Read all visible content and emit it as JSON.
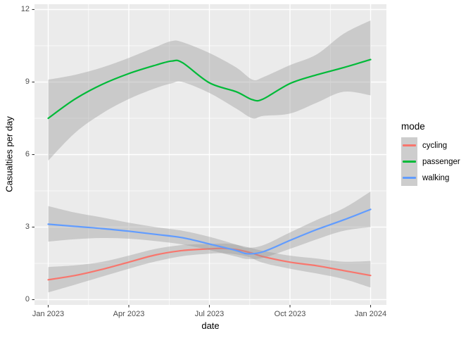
{
  "style": {
    "background": "#FFFFFF",
    "panel_bg": "#EBEBEB",
    "grid_color": "#FFFFFF",
    "band_color": "#999999",
    "band_opacity": 0.4,
    "tick_mark_color": "#333333",
    "tick_text_color": "#4D4D4D",
    "legend_key_bg": "#CDCDCD"
  },
  "chart_data": {
    "type": "line",
    "title": "",
    "xlabel": "date",
    "ylabel": "Casualties per day",
    "x_unit": "months since Jan 2023",
    "ylim": [
      0,
      12
    ],
    "grid": true,
    "x_ticks": [
      {
        "pos": 0,
        "label": "Jan 2023"
      },
      {
        "pos": 3,
        "label": "Apr 2023"
      },
      {
        "pos": 6,
        "label": "Jul 2023"
      },
      {
        "pos": 9,
        "label": "Oct 2023"
      },
      {
        "pos": 12,
        "label": "Jan 2024"
      }
    ],
    "y_ticks": [
      {
        "pos": 0,
        "label": "0"
      },
      {
        "pos": 3,
        "label": "3"
      },
      {
        "pos": 6,
        "label": "6"
      },
      {
        "pos": 9,
        "label": "9"
      },
      {
        "pos": 12,
        "label": "12"
      }
    ],
    "x_minor": [
      1.5,
      4.5,
      7.5,
      10.5
    ],
    "y_minor": [
      1.5,
      4.5,
      7.5,
      10.5
    ],
    "legend": {
      "title": "mode",
      "position": "right"
    },
    "series": [
      {
        "name": "cycling",
        "color": "#F8766D",
        "x": [
          0,
          1,
          2,
          3,
          4,
          5,
          6,
          6.5,
          7,
          7.5,
          8,
          9,
          10,
          11,
          12
        ],
        "y": [
          0.82,
          1.0,
          1.25,
          1.55,
          1.85,
          2.03,
          2.1,
          2.12,
          2.07,
          1.95,
          1.78,
          1.55,
          1.4,
          1.2,
          1.0
        ],
        "lo": [
          0.3,
          0.62,
          0.95,
          1.28,
          1.58,
          1.8,
          1.9,
          1.92,
          1.87,
          1.75,
          1.52,
          1.28,
          1.08,
          0.85,
          0.5
        ],
        "hi": [
          1.35,
          1.42,
          1.56,
          1.82,
          2.1,
          2.26,
          2.3,
          2.32,
          2.27,
          2.15,
          2.02,
          1.82,
          1.7,
          1.57,
          1.6
        ]
      },
      {
        "name": "passenger",
        "color": "#00BA38",
        "x": [
          0,
          1,
          2,
          3,
          4,
          4.6,
          5,
          6,
          7,
          7.6,
          8,
          9,
          10,
          11,
          12
        ],
        "y": [
          7.5,
          8.3,
          8.9,
          9.35,
          9.7,
          9.87,
          9.8,
          8.97,
          8.6,
          8.27,
          8.3,
          8.94,
          9.3,
          9.6,
          9.93
        ],
        "lo": [
          5.75,
          6.9,
          7.7,
          8.3,
          8.75,
          8.95,
          9.0,
          8.55,
          7.9,
          7.5,
          7.6,
          7.7,
          8.15,
          8.6,
          8.45
        ],
        "hi": [
          9.1,
          9.3,
          9.6,
          10.0,
          10.45,
          10.7,
          10.65,
          10.2,
          9.6,
          9.1,
          9.2,
          9.7,
          10.15,
          11.0,
          11.55
        ]
      },
      {
        "name": "walking",
        "color": "#619CFF",
        "x": [
          0,
          1,
          2,
          3,
          4,
          5,
          6,
          7,
          7.4,
          8,
          9,
          10,
          11,
          12
        ],
        "y": [
          3.12,
          3.03,
          2.94,
          2.83,
          2.7,
          2.56,
          2.3,
          2.03,
          1.9,
          1.98,
          2.45,
          2.9,
          3.3,
          3.73
        ],
        "lo": [
          2.4,
          2.5,
          2.55,
          2.52,
          2.42,
          2.28,
          2.05,
          1.78,
          1.68,
          1.73,
          2.1,
          2.5,
          2.85,
          3.0
        ],
        "hi": [
          3.87,
          3.6,
          3.4,
          3.18,
          3.0,
          2.85,
          2.6,
          2.28,
          2.15,
          2.25,
          2.78,
          3.3,
          3.78,
          4.47
        ]
      }
    ]
  }
}
